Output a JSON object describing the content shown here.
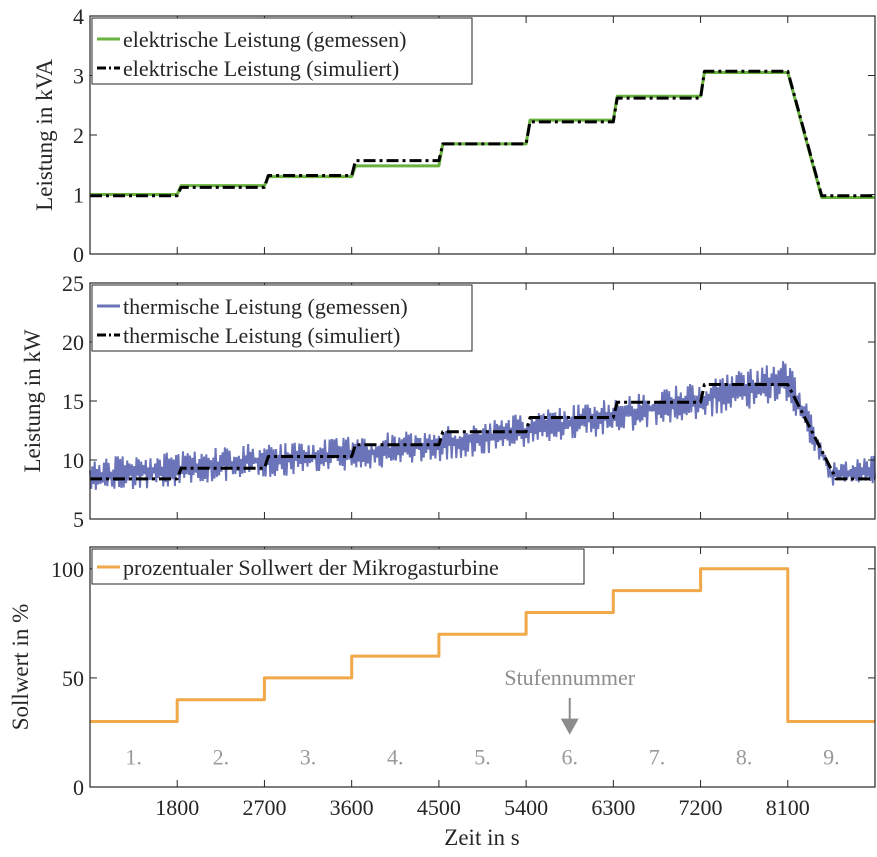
{
  "figure": {
    "xlabel": "Zeit in s",
    "x_ticks": [
      1800,
      2700,
      3600,
      4500,
      5400,
      6300,
      7200,
      8100
    ]
  },
  "colors": {
    "measured_el": "#6ab23f",
    "measured_th": "#6b74b8",
    "simulated": "#000000",
    "setpoint": "#f0a848",
    "stage_text": "#9a9a9a",
    "arrow": "#8c8c8c"
  },
  "chart_data": [
    {
      "type": "line",
      "ylabel": "Leistung in kVA",
      "xlim": [
        900,
        9000
      ],
      "ylim": [
        0,
        4
      ],
      "y_ticks": [
        0,
        1,
        2,
        3,
        4
      ],
      "grid": false,
      "legend_position": "top-left",
      "series": [
        {
          "name": "elektrische Leistung (gemessen)",
          "style": "solid",
          "x": [
            900,
            1800,
            1840,
            2700,
            2740,
            3600,
            3640,
            4500,
            4540,
            5400,
            5440,
            6300,
            6340,
            7200,
            7240,
            8100,
            8450,
            9000
          ],
          "y": [
            1.0,
            1.0,
            1.15,
            1.15,
            1.3,
            1.3,
            1.48,
            1.48,
            1.85,
            1.85,
            2.25,
            2.25,
            2.65,
            2.65,
            3.05,
            3.05,
            0.95,
            0.95
          ]
        },
        {
          "name": "elektrische Leistung (simuliert)",
          "style": "dashdot",
          "x": [
            900,
            1800,
            1840,
            2700,
            2740,
            3600,
            3640,
            4500,
            4540,
            5400,
            5440,
            6300,
            6340,
            7200,
            7240,
            8100,
            8450,
            9000
          ],
          "y": [
            0.98,
            0.98,
            1.12,
            1.12,
            1.32,
            1.32,
            1.57,
            1.57,
            1.85,
            1.85,
            2.22,
            2.22,
            2.62,
            2.62,
            3.07,
            3.07,
            0.98,
            0.98
          ]
        }
      ]
    },
    {
      "type": "line",
      "ylabel": "Leistung in kW",
      "xlim": [
        900,
        9000
      ],
      "ylim": [
        5,
        25
      ],
      "y_ticks": [
        5,
        10,
        15,
        20,
        25
      ],
      "grid": false,
      "legend_position": "top-left",
      "series": [
        {
          "name": "thermische Leistung (gemessen)",
          "style": "band",
          "x": [
            900,
            1800,
            2700,
            3600,
            4500,
            5400,
            6300,
            7200,
            8100,
            8550,
            9000
          ],
          "y_low": [
            7.2,
            7.8,
            8.5,
            9.0,
            9.8,
            11.0,
            12.2,
            13.5,
            15.0,
            7.8,
            8.0
          ],
          "y_high": [
            10.2,
            10.8,
            11.5,
            12.0,
            12.8,
            14.0,
            15.3,
            16.8,
            18.5,
            9.8,
            10.5
          ]
        },
        {
          "name": "thermische Leistung (simuliert)",
          "style": "dashdot",
          "x": [
            900,
            1800,
            1840,
            2700,
            2740,
            3600,
            3640,
            4500,
            4540,
            5400,
            5440,
            6300,
            6340,
            7200,
            7240,
            8100,
            8600,
            9000
          ],
          "y": [
            8.4,
            8.4,
            9.3,
            9.3,
            10.3,
            10.3,
            11.3,
            11.3,
            12.4,
            12.4,
            13.6,
            13.6,
            14.9,
            14.9,
            16.4,
            16.4,
            8.4,
            8.4
          ]
        }
      ]
    },
    {
      "type": "line",
      "ylabel": "Sollwert in %",
      "xlim": [
        900,
        9000
      ],
      "ylim": [
        0,
        110
      ],
      "y_ticks": [
        0,
        50,
        100
      ],
      "grid": false,
      "legend_position": "top-left",
      "series": [
        {
          "name": "prozentualer Sollwert der Mikrogasturbine",
          "style": "step",
          "x": [
            900,
            1800,
            1800,
            2700,
            2700,
            3600,
            3600,
            4500,
            4500,
            5400,
            5400,
            6300,
            6300,
            7200,
            7200,
            8100,
            8100,
            9000
          ],
          "y": [
            30,
            30,
            40,
            40,
            50,
            50,
            60,
            60,
            70,
            70,
            80,
            80,
            90,
            90,
            100,
            100,
            30,
            30
          ]
        }
      ],
      "annotations": {
        "stage_label": "Stufennummer",
        "stage_arrow_x": 5850,
        "stages": [
          {
            "label": "1.",
            "x": 1350
          },
          {
            "label": "2.",
            "x": 2250
          },
          {
            "label": "3.",
            "x": 3150
          },
          {
            "label": "4.",
            "x": 4050
          },
          {
            "label": "5.",
            "x": 4950
          },
          {
            "label": "6.",
            "x": 5850
          },
          {
            "label": "7.",
            "x": 6750
          },
          {
            "label": "8.",
            "x": 7650
          },
          {
            "label": "9.",
            "x": 8550
          }
        ],
        "stage_label_y": 14
      }
    }
  ]
}
